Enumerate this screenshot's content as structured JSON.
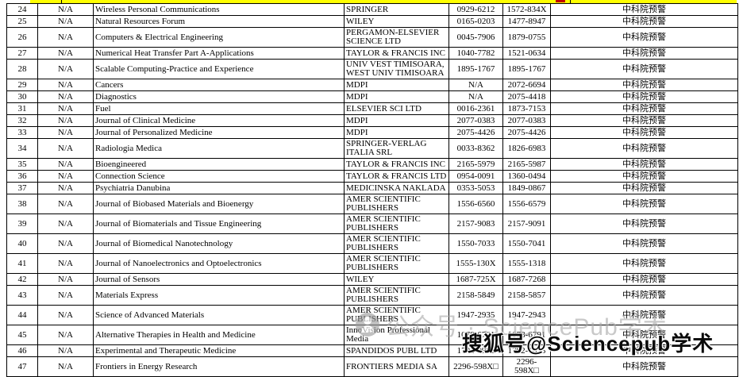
{
  "top_strip": {
    "highlight_color": "#ffff00",
    "red_mark_color": "#c00000"
  },
  "watermarks": {
    "gray": {
      "logo": "public-account-logo",
      "text": "公众号 · SciencePub学术",
      "color": "#a9a9a9"
    },
    "black": {
      "text": "搜狐号@Sciencepub学术",
      "color": "#0a0a0a"
    }
  },
  "table": {
    "columns": [
      "row-number",
      "value",
      "journal-title",
      "publisher",
      "issn-print",
      "issn-online",
      "warning"
    ],
    "warning_label": "中科院预警",
    "rows": [
      {
        "num": "24",
        "na": "N/A",
        "journal": "Wireless Personal Communications",
        "publisher": "SPRINGER",
        "issn": "0929-6212",
        "eissn": "1572-834X",
        "warning": "中科院预警"
      },
      {
        "num": "25",
        "na": "N/A",
        "journal": "Natural Resources Forum",
        "publisher": "WILEY",
        "issn": "0165-0203",
        "eissn": "1477-8947",
        "warning": "中科院预警"
      },
      {
        "num": "26",
        "na": "N/A",
        "journal": "Computers & Electrical Engineering",
        "publisher": "PERGAMON-ELSEVIER SCIENCE LTD",
        "issn": "0045-7906",
        "eissn": "1879-0755",
        "warning": "中科院预警"
      },
      {
        "num": "27",
        "na": "N/A",
        "journal": "Numerical Heat Transfer Part A-Applications",
        "publisher": "TAYLOR & FRANCIS INC",
        "issn": "1040-7782",
        "eissn": "1521-0634",
        "warning": "中科院预警"
      },
      {
        "num": "28",
        "na": "N/A",
        "journal": "Scalable Computing-Practice and Experience",
        "publisher": "UNIV VEST TIMISOARA, WEST UNIV TIMISOARA",
        "issn": "1895-1767",
        "eissn": "1895-1767",
        "warning": "中科院预警"
      },
      {
        "num": "29",
        "na": "N/A",
        "journal": "Cancers",
        "publisher": "MDPI",
        "issn": "N/A",
        "eissn": "2072-6694",
        "warning": "中科院预警"
      },
      {
        "num": "30",
        "na": "N/A",
        "journal": "Diagnostics",
        "publisher": "MDPI",
        "issn": "N/A",
        "eissn": "2075-4418",
        "warning": "中科院预警"
      },
      {
        "num": "31",
        "na": "N/A",
        "journal": "Fuel",
        "publisher": "ELSEVIER SCI LTD",
        "issn": "0016-2361",
        "eissn": "1873-7153",
        "warning": "中科院预警"
      },
      {
        "num": "32",
        "na": "N/A",
        "journal": "Journal of Clinical Medicine",
        "publisher": "MDPI",
        "issn": "2077-0383",
        "eissn": "2077-0383",
        "warning": "中科院预警"
      },
      {
        "num": "33",
        "na": "N/A",
        "journal": "Journal of Personalized Medicine",
        "publisher": "MDPI",
        "issn": "2075-4426",
        "eissn": "2075-4426",
        "warning": "中科院预警"
      },
      {
        "num": "34",
        "na": "N/A",
        "journal": "Radiologia Medica",
        "publisher": "SPRINGER-VERLAG ITALIA SRL",
        "issn": "0033-8362",
        "eissn": "1826-6983",
        "warning": "中科院预警"
      },
      {
        "num": "35",
        "na": "N/A",
        "journal": "Bioengineered",
        "publisher": "TAYLOR & FRANCIS INC",
        "issn": "2165-5979",
        "eissn": "2165-5987",
        "warning": "中科院预警"
      },
      {
        "num": "36",
        "na": "N/A",
        "journal": "Connection Science",
        "publisher": "TAYLOR & FRANCIS LTD",
        "issn": "0954-0091",
        "eissn": "1360-0494",
        "warning": "中科院预警"
      },
      {
        "num": "37",
        "na": "N/A",
        "journal": "Psychiatria Danubina",
        "publisher": "MEDICINSKA NAKLADA",
        "issn": "0353-5053",
        "eissn": "1849-0867",
        "warning": "中科院预警"
      },
      {
        "num": "38",
        "na": "N/A",
        "journal": "Journal of Biobased Materials and Bioenergy",
        "publisher": "AMER SCIENTIFIC PUBLISHERS",
        "issn": "1556-6560",
        "eissn": "1556-6579",
        "warning": "中科院预警"
      },
      {
        "num": "39",
        "na": "N/A",
        "journal": "Journal of Biomaterials and Tissue Engineering",
        "publisher": "AMER SCIENTIFIC PUBLISHERS",
        "issn": "2157-9083",
        "eissn": "2157-9091",
        "warning": "中科院预警"
      },
      {
        "num": "40",
        "na": "N/A",
        "journal": "Journal of Biomedical Nanotechnology",
        "publisher": "AMER SCIENTIFIC PUBLISHERS",
        "issn": "1550-7033",
        "eissn": "1550-7041",
        "warning": "中科院预警"
      },
      {
        "num": "41",
        "na": "N/A",
        "journal": "Journal of Nanoelectronics and Optoelectronics",
        "publisher": "AMER SCIENTIFIC PUBLISHERS",
        "issn": "1555-130X",
        "eissn": "1555-1318",
        "warning": "中科院预警"
      },
      {
        "num": "42",
        "na": "N/A",
        "journal": "Journal of Sensors",
        "publisher": "WILEY",
        "issn": "1687-725X",
        "eissn": "1687-7268",
        "warning": "中科院预警"
      },
      {
        "num": "43",
        "na": "N/A",
        "journal": "Materials Express",
        "publisher": "AMER SCIENTIFIC PUBLISHERS",
        "issn": "2158-5849",
        "eissn": "2158-5857",
        "warning": "中科院预警"
      },
      {
        "num": "44",
        "na": "N/A",
        "journal": "Science of Advanced Materials",
        "publisher": "AMER SCIENTIFIC PUBLISHERS",
        "issn": "1947-2935",
        "eissn": "1947-2943",
        "warning": "中科院预警"
      },
      {
        "num": "45",
        "na": "N/A",
        "journal": "Alternative Therapies in Health and Medicine",
        "publisher": "InnoVision Professional Media",
        "issn": "1078-6791",
        "eissn": "1078-6791",
        "warning": "中科院预警"
      },
      {
        "num": "46",
        "na": "N/A",
        "journal": "Experimental and Therapeutic Medicine",
        "publisher": "SPANDIDOS PUBL LTD",
        "issn": "1792-0981",
        "eissn": "1792-1015",
        "warning": "中科院预警"
      },
      {
        "num": "47",
        "na": "N/A",
        "journal": "Frontiers in Energy Research",
        "publisher": "FRONTIERS MEDIA SA",
        "issn": "2296-598X□",
        "eissn": "2296-598X□",
        "warning": "中科院预警"
      }
    ]
  }
}
